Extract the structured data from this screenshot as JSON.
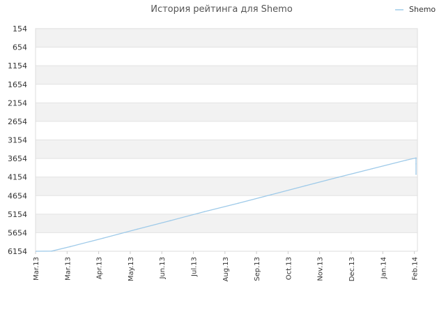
{
  "chart_data": {
    "type": "line",
    "title": "История рейтинга для Shemo",
    "xlabel": "",
    "ylabel": "",
    "y_inverted": true,
    "ylim": [
      154,
      6154
    ],
    "yticks": [
      154,
      654,
      1154,
      1654,
      2154,
      2654,
      3154,
      3654,
      4154,
      4654,
      5154,
      5654,
      6154
    ],
    "x_ticks": [
      "Mar.13",
      "Mar.13",
      "Apr.13",
      "May.13",
      "Jun.13",
      "Jul.13",
      "Aug.13",
      "Sep.13",
      "Oct.13",
      "Nov.13",
      "Dec.13",
      "Jan.14",
      "Feb.14"
    ],
    "grid": true,
    "legend_position": "top-right",
    "series": [
      {
        "name": "Shemo",
        "color": "#9ecae9",
        "points": [
          {
            "x": "2013-03-01",
            "y": 6154
          },
          {
            "x": "2013-03-15",
            "y": 6150
          },
          {
            "x": "2013-04-01",
            "y": 6030
          },
          {
            "x": "2013-05-01",
            "y": 5800
          },
          {
            "x": "2013-06-01",
            "y": 5560
          },
          {
            "x": "2013-07-01",
            "y": 5330
          },
          {
            "x": "2013-08-01",
            "y": 5090
          },
          {
            "x": "2013-09-01",
            "y": 4860
          },
          {
            "x": "2013-10-01",
            "y": 4630
          },
          {
            "x": "2013-11-01",
            "y": 4390
          },
          {
            "x": "2013-12-01",
            "y": 4160
          },
          {
            "x": "2014-01-01",
            "y": 3930
          },
          {
            "x": "2014-02-01",
            "y": 3700
          },
          {
            "x": "2014-02-10",
            "y": 3640
          },
          {
            "x": "2014-02-10",
            "y": 4080
          },
          {
            "x": "2014-02-10",
            "y": 3800
          }
        ]
      }
    ]
  }
}
